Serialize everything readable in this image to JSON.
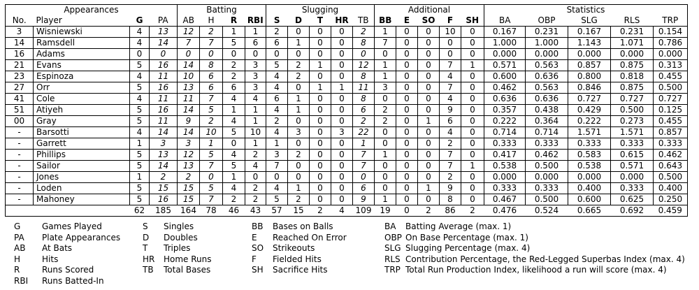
{
  "colors": {
    "text": "#000000",
    "border": "#000000",
    "background": "#ffffff"
  },
  "table": {
    "groups": [
      {
        "label": "Appearances",
        "span": 4
      },
      {
        "label": "Batting",
        "span": 4
      },
      {
        "label": "Slugging",
        "span": 5
      },
      {
        "label": "Additional",
        "span": 5
      },
      {
        "label": "Statistics",
        "span": 5
      }
    ],
    "columns": [
      "No.",
      "Player",
      "G",
      "PA",
      "AB",
      "H",
      "R",
      "RBI",
      "S",
      "D",
      "T",
      "HR",
      "TB",
      "BB",
      "E",
      "SO",
      "F",
      "SH",
      "BA",
      "OBP",
      "SLG",
      "RLS",
      "TRP"
    ],
    "rows": [
      [
        "3",
        "Wisniewski",
        "4",
        "13",
        "12",
        "2",
        "1",
        "1",
        "2",
        "0",
        "0",
        "0",
        "2",
        "1",
        "0",
        "0",
        "10",
        "0",
        "0.167",
        "0.231",
        "0.167",
        "0.231",
        "0.154"
      ],
      [
        "14",
        "Ramsdell",
        "4",
        "14",
        "7",
        "7",
        "5",
        "6",
        "6",
        "1",
        "0",
        "0",
        "8",
        "7",
        "0",
        "0",
        "0",
        "0",
        "1.000",
        "1.000",
        "1.143",
        "1.071",
        "0.786"
      ],
      [
        "16",
        "Adams",
        "0",
        "0",
        "0",
        "0",
        "0",
        "0",
        "0",
        "0",
        "0",
        "0",
        "0",
        "0",
        "0",
        "0",
        "0",
        "0",
        "0.000",
        "0.000",
        "0.000",
        "0.000",
        "0.000"
      ],
      [
        "21",
        "Evans",
        "5",
        "16",
        "14",
        "8",
        "2",
        "3",
        "5",
        "2",
        "1",
        "0",
        "12",
        "1",
        "0",
        "0",
        "7",
        "1",
        "0.571",
        "0.563",
        "0.857",
        "0.875",
        "0.313"
      ],
      [
        "23",
        "Espinoza",
        "4",
        "11",
        "10",
        "6",
        "2",
        "3",
        "4",
        "2",
        "0",
        "0",
        "8",
        "1",
        "0",
        "0",
        "4",
        "0",
        "0.600",
        "0.636",
        "0.800",
        "0.818",
        "0.455"
      ],
      [
        "27",
        "Orr",
        "5",
        "16",
        "13",
        "6",
        "6",
        "3",
        "4",
        "0",
        "1",
        "1",
        "11",
        "3",
        "0",
        "0",
        "7",
        "0",
        "0.462",
        "0.563",
        "0.846",
        "0.875",
        "0.500"
      ],
      [
        "41",
        "Cole",
        "4",
        "11",
        "11",
        "7",
        "4",
        "4",
        "6",
        "1",
        "0",
        "0",
        "8",
        "0",
        "0",
        "0",
        "4",
        "0",
        "0.636",
        "0.636",
        "0.727",
        "0.727",
        "0.727"
      ],
      [
        "51",
        "Atiyeh",
        "5",
        "16",
        "14",
        "5",
        "1",
        "1",
        "4",
        "1",
        "0",
        "0",
        "6",
        "2",
        "0",
        "0",
        "9",
        "0",
        "0.357",
        "0.438",
        "0.429",
        "0.500",
        "0.125"
      ],
      [
        "00",
        "Gray",
        "5",
        "11",
        "9",
        "2",
        "4",
        "1",
        "2",
        "0",
        "0",
        "0",
        "2",
        "2",
        "0",
        "1",
        "6",
        "0",
        "0.222",
        "0.364",
        "0.222",
        "0.273",
        "0.455"
      ],
      [
        "-",
        "Barsotti",
        "4",
        "14",
        "14",
        "10",
        "5",
        "10",
        "4",
        "3",
        "0",
        "3",
        "22",
        "0",
        "0",
        "0",
        "4",
        "0",
        "0.714",
        "0.714",
        "1.571",
        "1.571",
        "0.857"
      ],
      [
        "-",
        "Garrett",
        "1",
        "3",
        "3",
        "1",
        "0",
        "1",
        "1",
        "0",
        "0",
        "0",
        "1",
        "0",
        "0",
        "0",
        "2",
        "0",
        "0.333",
        "0.333",
        "0.333",
        "0.333",
        "0.333"
      ],
      [
        "-",
        "Phillips",
        "5",
        "13",
        "12",
        "5",
        "4",
        "2",
        "3",
        "2",
        "0",
        "0",
        "7",
        "1",
        "0",
        "0",
        "7",
        "0",
        "0.417",
        "0.462",
        "0.583",
        "0.615",
        "0.462"
      ],
      [
        "-",
        "Sailor",
        "5",
        "14",
        "13",
        "7",
        "5",
        "4",
        "7",
        "0",
        "0",
        "0",
        "7",
        "0",
        "0",
        "0",
        "7",
        "1",
        "0.538",
        "0.500",
        "0.538",
        "0.571",
        "0.643"
      ],
      [
        "-",
        "Jones",
        "1",
        "2",
        "2",
        "0",
        "1",
        "0",
        "0",
        "0",
        "0",
        "0",
        "0",
        "0",
        "0",
        "0",
        "2",
        "0",
        "0.000",
        "0.000",
        "0.000",
        "0.000",
        "0.500"
      ],
      [
        "-",
        "Loden",
        "5",
        "15",
        "15",
        "5",
        "4",
        "2",
        "4",
        "1",
        "0",
        "0",
        "6",
        "0",
        "0",
        "1",
        "9",
        "0",
        "0.333",
        "0.333",
        "0.400",
        "0.333",
        "0.400"
      ],
      [
        "-",
        "Mahoney",
        "5",
        "16",
        "15",
        "7",
        "2",
        "2",
        "5",
        "2",
        "0",
        "0",
        "9",
        "1",
        "0",
        "0",
        "8",
        "0",
        "0.467",
        "0.500",
        "0.600",
        "0.625",
        "0.250"
      ]
    ],
    "totals": [
      "",
      "",
      "62",
      "185",
      "164",
      "78",
      "46",
      "43",
      "57",
      "15",
      "2",
      "4",
      "109",
      "19",
      "0",
      "2",
      "86",
      "2",
      "0.476",
      "0.524",
      "0.665",
      "0.692",
      "0.459"
    ]
  },
  "legend": {
    "columns": [
      {
        "items": [
          {
            "abbr": "G",
            "desc": "Games Played"
          },
          {
            "abbr": "PA",
            "desc": "Plate Appearances"
          },
          {
            "abbr": "AB",
            "desc": "At Bats"
          },
          {
            "abbr": "H",
            "desc": "Hits"
          },
          {
            "abbr": "R",
            "desc": "Runs Scored"
          },
          {
            "abbr": "RBI",
            "desc": "Runs Batted-In"
          }
        ]
      },
      {
        "items": [
          {
            "abbr": "S",
            "desc": "Singles"
          },
          {
            "abbr": "D",
            "desc": "Doubles"
          },
          {
            "abbr": "T",
            "desc": "Triples"
          },
          {
            "abbr": "HR",
            "desc": "Home Runs"
          },
          {
            "abbr": "TB",
            "desc": "Total Bases"
          }
        ]
      },
      {
        "items": [
          {
            "abbr": "BB",
            "desc": "Bases on Balls"
          },
          {
            "abbr": "E",
            "desc": "Reached On Error"
          },
          {
            "abbr": "SO",
            "desc": "Strikeouts"
          },
          {
            "abbr": "F",
            "desc": "Fielded Hits"
          },
          {
            "abbr": "SH",
            "desc": "Sacrifice Hits"
          }
        ]
      },
      {
        "items": [
          {
            "abbr": "BA",
            "desc": "Batting Average (max. 1)"
          },
          {
            "abbr": "OBP",
            "desc": "On Base Percentage (max. 1)"
          },
          {
            "abbr": "SLG",
            "desc": "Slugging Percentage (max. 4)"
          },
          {
            "abbr": "RLS",
            "desc": "Contribution Percentage, the Red-Legged Superbas Index (max. 4)"
          },
          {
            "abbr": "TRP",
            "desc": "Total Run Production Index, likelihood a run will score (max. 4)"
          }
        ]
      }
    ]
  }
}
